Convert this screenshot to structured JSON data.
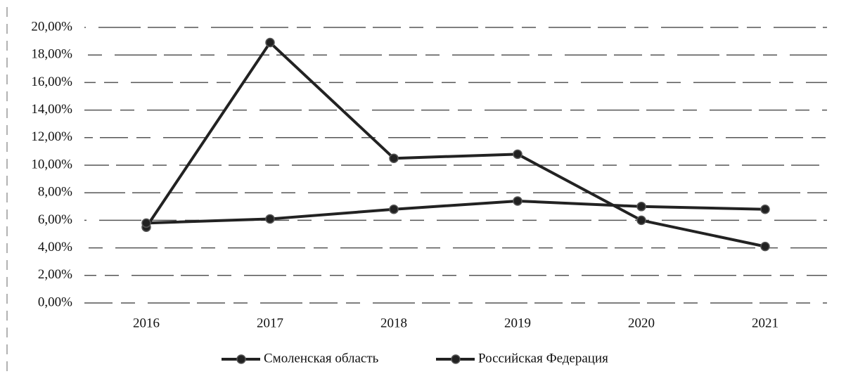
{
  "chart_data": {
    "type": "line",
    "categories": [
      "2016",
      "2017",
      "2018",
      "2019",
      "2020",
      "2021"
    ],
    "series": [
      {
        "name": "Смоленская область",
        "color": "#222222",
        "values": [
          5.5,
          18.9,
          10.5,
          10.8,
          6.0,
          4.1
        ]
      },
      {
        "name": "Российская Федерация",
        "color": "#222222",
        "values": [
          5.8,
          6.1,
          6.8,
          7.4,
          7.0,
          6.8
        ]
      }
    ],
    "ylim": [
      0,
      20
    ],
    "yticks": [
      {
        "value": 0,
        "label": "0,00%"
      },
      {
        "value": 2,
        "label": "2,00%"
      },
      {
        "value": 4,
        "label": "4,00%"
      },
      {
        "value": 6,
        "label": "6,00%"
      },
      {
        "value": 8,
        "label": "8,00%"
      },
      {
        "value": 10,
        "label": "10,00%"
      },
      {
        "value": 12,
        "label": "12,00%"
      },
      {
        "value": 14,
        "label": "14,00%"
      },
      {
        "value": 16,
        "label": "16,00%"
      },
      {
        "value": 18,
        "label": "18,00%"
      },
      {
        "value": 20,
        "label": "20,00%"
      }
    ],
    "grid": true,
    "legend": "bottom"
  }
}
